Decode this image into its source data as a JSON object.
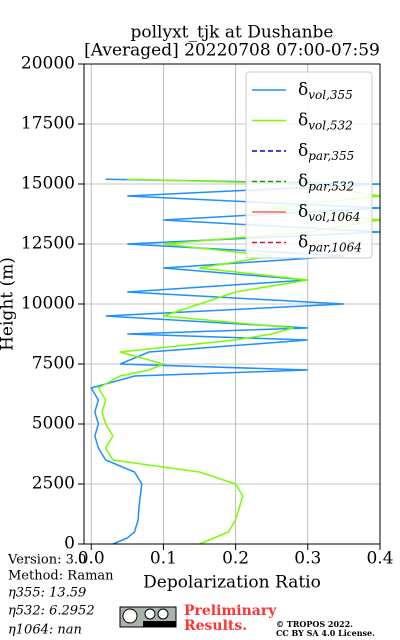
{
  "chart_data": {
    "type": "line",
    "title": "pollyxt_tjk at Dushanbe",
    "subtitle": "[Averaged] 20220708 07:00-07:59",
    "x_label": "Depolarization Ratio",
    "y_label": "Height (m)",
    "xlim": [
      -0.01,
      0.4
    ],
    "xticks": [
      {
        "value": 0,
        "label": "0.0"
      },
      0.1,
      0.2,
      0.3,
      0.4
    ],
    "ylim": [
      0,
      20000
    ],
    "yticks": [
      0,
      2500,
      5000,
      7500,
      10000,
      12500,
      15000,
      17500,
      20000
    ],
    "grid": true,
    "legend": "upper right",
    "y": [
      0,
      250,
      500,
      1000,
      1500,
      2000,
      2500,
      3000,
      3500,
      4000,
      4500,
      5000,
      5500,
      6000,
      6500,
      7000,
      7250,
      7500,
      8000,
      8500,
      8750,
      9000,
      9500,
      10000,
      10500,
      11000,
      11500,
      12000,
      12500,
      13000,
      13500,
      14000,
      14500,
      15000,
      15200
    ],
    "series": [
      {
        "name": "δvol,355",
        "color": "#1e90ff",
        "dash": false,
        "values": [
          0.03,
          0.05,
          0.06,
          0.065,
          0.066,
          0.068,
          0.07,
          0.06,
          0.02,
          0.01,
          0.005,
          0.01,
          0.005,
          0.01,
          0.0,
          0.06,
          0.3,
          0.04,
          0.08,
          0.3,
          0.05,
          0.3,
          0.02,
          0.35,
          0.05,
          0.3,
          0.1,
          0.35,
          0.05,
          0.4,
          0.1,
          0.4,
          0.05,
          0.4,
          0.02
        ]
      },
      {
        "name": "δvol,532",
        "color": "#7cfc00",
        "dash": false,
        "values": [
          0.15,
          0.17,
          0.19,
          0.2,
          0.205,
          0.21,
          0.2,
          0.15,
          0.03,
          0.02,
          0.03,
          0.02,
          0.015,
          0.02,
          0.01,
          0.04,
          0.08,
          0.1,
          0.04,
          0.2,
          0.25,
          0.28,
          0.1,
          0.15,
          0.2,
          0.3,
          0.15,
          0.25,
          0.1,
          0.3,
          0.4,
          0.25,
          0.4,
          0.3,
          0.05
        ]
      },
      {
        "name": "δpar,355",
        "color": "#0000cd",
        "dash": true,
        "values": [
          null,
          null,
          null,
          null,
          null,
          null,
          null,
          null,
          null,
          null,
          null,
          null,
          null,
          null,
          null,
          null,
          null,
          null,
          null,
          null,
          null,
          null,
          null,
          null,
          null,
          null,
          null,
          null,
          null,
          null,
          null,
          null,
          null,
          null,
          null
        ]
      },
      {
        "name": "δpar,532",
        "color": "#228b22",
        "dash": true,
        "values": [
          null,
          null,
          null,
          null,
          null,
          null,
          null,
          null,
          null,
          null,
          null,
          null,
          null,
          null,
          null,
          null,
          null,
          null,
          null,
          null,
          null,
          null,
          null,
          null,
          null,
          null,
          null,
          null,
          null,
          null,
          null,
          null,
          null,
          null,
          null
        ]
      },
      {
        "name": "δvol,1064",
        "color": "#ff6347",
        "dash": false,
        "values": [
          null,
          null,
          null,
          null,
          null,
          null,
          null,
          null,
          null,
          null,
          null,
          null,
          null,
          null,
          null,
          null,
          null,
          null,
          null,
          null,
          null,
          null,
          null,
          null,
          null,
          null,
          null,
          null,
          null,
          null,
          null,
          null,
          null,
          null,
          null
        ]
      },
      {
        "name": "δpar,1064",
        "color": "#dc143c",
        "dash": true,
        "values": [
          null,
          null,
          null,
          null,
          null,
          null,
          null,
          null,
          null,
          null,
          null,
          null,
          null,
          null,
          null,
          null,
          null,
          null,
          null,
          null,
          null,
          null,
          null,
          null,
          null,
          null,
          null,
          null,
          null,
          null,
          null,
          null,
          null,
          null,
          null
        ]
      }
    ],
    "annotations": [
      "Version: 3.0",
      "Method: Raman",
      "η355:  13.59",
      "η532: 6.2952",
      "η1064:    nan",
      "Preliminary",
      "Results.",
      "© TROPOS 2022.",
      "CC BY SA 4.0 License."
    ]
  }
}
